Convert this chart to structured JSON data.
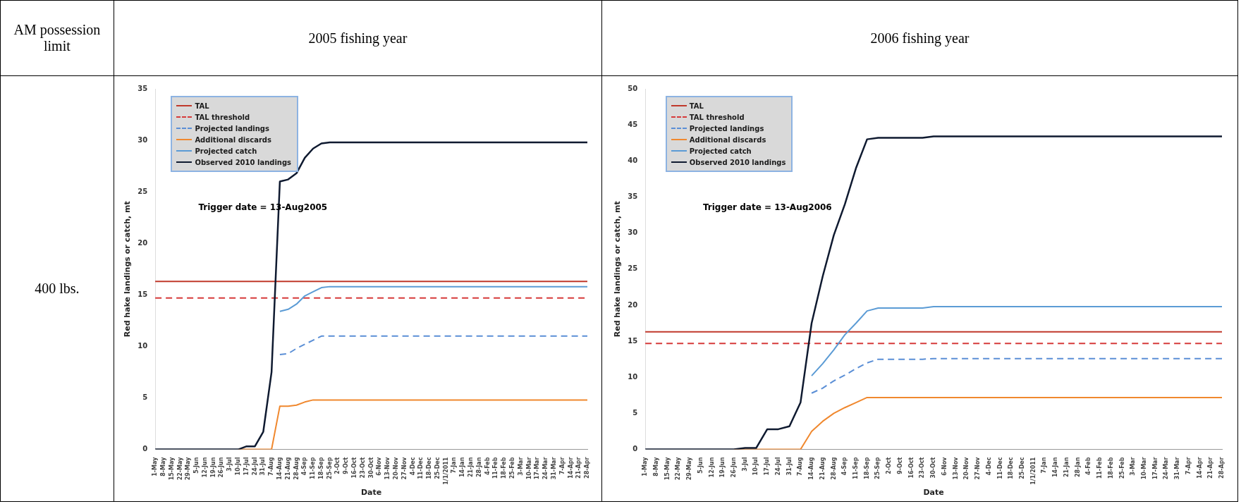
{
  "chart_data": [
    {
      "type": "other",
      "title": "AM possession limit",
      "annotations": [
        "400 lbs."
      ]
    },
    {
      "type": "line",
      "title": "2005 fishing year",
      "xlabel": "Date",
      "ylabel": "Red hake landings or catch, mt",
      "legend": "top left",
      "marker": "none",
      "grid": false,
      "categories": [
        "1-May",
        "8-May",
        "15-May",
        "22-May",
        "29-May",
        "5-Jun",
        "12-Jun",
        "19-Jun",
        "26-Jun",
        "3-Jul",
        "10-Jul",
        "17-Jul",
        "24-Jul",
        "31-Jul",
        "7-Aug",
        "14-Aug",
        "21-Aug",
        "28-Aug",
        "4-Sep",
        "11-Sep",
        "18-Sep",
        "25-Sep",
        "2-Oct",
        "9-Oct",
        "16-Oct",
        "23-Oct",
        "30-Oct",
        "6-Nov",
        "13-Nov",
        "20-Nov",
        "27-Nov",
        "4-Dec",
        "11-Dec",
        "18-Dec",
        "25-Dec",
        "1/1/2011",
        "7-Jan",
        "14-Jan",
        "21-Jan",
        "28-Jan",
        "4-Feb",
        "11-Feb",
        "18-Feb",
        "25-Feb",
        "3-Mar",
        "10-Mar",
        "17-Mar",
        "24-Mar",
        "31-Mar",
        "7-Apr",
        "14-Apr",
        "21-Apr",
        "28-Apr"
      ],
      "ylim": [
        0,
        35
      ],
      "yticks": [
        0,
        5,
        10,
        15,
        20,
        25,
        30,
        35
      ],
      "ref_lines": [
        {
          "axis": "y",
          "value": 16.3,
          "label": "TAL",
          "color": "#c0392b",
          "line_style": "solid"
        },
        {
          "axis": "y",
          "value": 14.7,
          "label": "TAL threshold",
          "color": "#d63a3a",
          "line_style": "dashed"
        }
      ],
      "series": [
        {
          "name": "Projected landings",
          "color": "#5b8fd6",
          "line_style": "dashed",
          "values": [
            null,
            null,
            null,
            null,
            null,
            null,
            null,
            null,
            null,
            null,
            null,
            null,
            null,
            null,
            null,
            9.2,
            9.3,
            9.8,
            10.2,
            10.6,
            11.0,
            11.0,
            11.0,
            11.0,
            11.0,
            11.0,
            11.0,
            11.0,
            11.0,
            11.0,
            11.0,
            11.0,
            11.0,
            11.0,
            11.0,
            11.0,
            11.0,
            11.0,
            11.0,
            11.0,
            11.0,
            11.0,
            11.0,
            11.0,
            11.0,
            11.0,
            11.0,
            11.0,
            11.0,
            11.0,
            11.0,
            11.0,
            11.0
          ]
        },
        {
          "name": "Additional discards",
          "color": "#f0882e",
          "line_style": "solid",
          "values": [
            null,
            null,
            null,
            null,
            null,
            null,
            null,
            null,
            null,
            null,
            0,
            0,
            0,
            0,
            0,
            4.2,
            4.2,
            4.3,
            4.6,
            4.8,
            4.8,
            4.8,
            4.8,
            4.8,
            4.8,
            4.8,
            4.8,
            4.8,
            4.8,
            4.8,
            4.8,
            4.8,
            4.8,
            4.8,
            4.8,
            4.8,
            4.8,
            4.8,
            4.8,
            4.8,
            4.8,
            4.8,
            4.8,
            4.8,
            4.8,
            4.8,
            4.8,
            4.8,
            4.8,
            4.8,
            4.8,
            4.8,
            4.8
          ]
        },
        {
          "name": "Projected catch",
          "color": "#5b9bd5",
          "line_style": "solid",
          "values": [
            null,
            null,
            null,
            null,
            null,
            null,
            null,
            null,
            null,
            null,
            null,
            null,
            null,
            null,
            null,
            13.4,
            13.6,
            14.1,
            14.9,
            15.3,
            15.7,
            15.8,
            15.8,
            15.8,
            15.8,
            15.8,
            15.8,
            15.8,
            15.8,
            15.8,
            15.8,
            15.8,
            15.8,
            15.8,
            15.8,
            15.8,
            15.8,
            15.8,
            15.8,
            15.8,
            15.8,
            15.8,
            15.8,
            15.8,
            15.8,
            15.8,
            15.8,
            15.8,
            15.8,
            15.8,
            15.8,
            15.8,
            15.8
          ]
        },
        {
          "name": "Observed 2010 landings",
          "color": "#0f1a30",
          "line_style": "solid",
          "values": [
            0,
            0,
            0,
            0,
            0,
            0,
            0,
            0,
            0,
            0,
            0,
            0.3,
            0.3,
            1.7,
            7.5,
            26,
            26.2,
            26.8,
            28.3,
            29.2,
            29.7,
            29.8,
            29.8,
            29.8,
            29.8,
            29.8,
            29.8,
            29.8,
            29.8,
            29.8,
            29.8,
            29.8,
            29.8,
            29.8,
            29.8,
            29.8,
            29.8,
            29.8,
            29.8,
            29.8,
            29.8,
            29.8,
            29.8,
            29.8,
            29.8,
            29.8,
            29.8,
            29.8,
            29.8,
            29.8,
            29.8,
            29.8,
            29.8
          ]
        }
      ],
      "annotations": [
        "Trigger date = 13-Aug2005"
      ]
    },
    {
      "type": "line",
      "title": "2006 fishing year",
      "xlabel": "Date",
      "ylabel": "Red hake landings or catch, mt",
      "legend": "top left",
      "marker": "none",
      "grid": false,
      "categories": [
        "1-May",
        "8-May",
        "15-May",
        "22-May",
        "29-May",
        "5-Jun",
        "12-Jun",
        "19-Jun",
        "26-Jun",
        "3-Jul",
        "10-Jul",
        "17-Jul",
        "24-Jul",
        "31-Jul",
        "7-Aug",
        "14-Aug",
        "21-Aug",
        "28-Aug",
        "4-Sep",
        "11-Sep",
        "18-Sep",
        "25-Sep",
        "2-Oct",
        "9-Oct",
        "16-Oct",
        "23-Oct",
        "30-Oct",
        "6-Nov",
        "13-Nov",
        "20-Nov",
        "27-Nov",
        "4-Dec",
        "11-Dec",
        "18-Dec",
        "25-Dec",
        "1/1/2011",
        "7-Jan",
        "14-Jan",
        "21-Jan",
        "28-Jan",
        "4-Feb",
        "11-Feb",
        "18-Feb",
        "25-Feb",
        "3-Mar",
        "10-Mar",
        "17-Mar",
        "24-Mar",
        "31-Mar",
        "7-Apr",
        "14-Apr",
        "21-Apr",
        "28-Apr"
      ],
      "ylim": [
        0,
        50
      ],
      "yticks": [
        0,
        5,
        10,
        15,
        20,
        25,
        30,
        35,
        40,
        45,
        50
      ],
      "ref_lines": [
        {
          "axis": "y",
          "value": 16.3,
          "label": "TAL",
          "color": "#c0392b",
          "line_style": "solid"
        },
        {
          "axis": "y",
          "value": 14.7,
          "label": "TAL threshold",
          "color": "#d63a3a",
          "line_style": "dashed"
        }
      ],
      "series": [
        {
          "name": "Projected landings",
          "color": "#5b8fd6",
          "line_style": "dashed",
          "values": [
            null,
            null,
            null,
            null,
            null,
            null,
            null,
            null,
            null,
            null,
            null,
            null,
            null,
            null,
            null,
            7.8,
            8.5,
            9.5,
            10.3,
            11.2,
            12.0,
            12.5,
            12.5,
            12.5,
            12.5,
            12.5,
            12.6,
            12.6,
            12.6,
            12.6,
            12.6,
            12.6,
            12.6,
            12.6,
            12.6,
            12.6,
            12.6,
            12.6,
            12.6,
            12.6,
            12.6,
            12.6,
            12.6,
            12.6,
            12.6,
            12.6,
            12.6,
            12.6,
            12.6,
            12.6,
            12.6,
            12.6,
            12.6
          ]
        },
        {
          "name": "Additional discards",
          "color": "#f0882e",
          "line_style": "solid",
          "values": [
            null,
            null,
            null,
            null,
            null,
            null,
            null,
            null,
            0,
            0,
            0,
            0,
            0,
            0,
            0,
            2.5,
            3.9,
            5.0,
            5.8,
            6.5,
            7.2,
            7.2,
            7.2,
            7.2,
            7.2,
            7.2,
            7.2,
            7.2,
            7.2,
            7.2,
            7.2,
            7.2,
            7.2,
            7.2,
            7.2,
            7.2,
            7.2,
            7.2,
            7.2,
            7.2,
            7.2,
            7.2,
            7.2,
            7.2,
            7.2,
            7.2,
            7.2,
            7.2,
            7.2,
            7.2,
            7.2,
            7.2,
            7.2
          ]
        },
        {
          "name": "Projected catch",
          "color": "#5b9bd5",
          "line_style": "solid",
          "values": [
            null,
            null,
            null,
            null,
            null,
            null,
            null,
            null,
            null,
            null,
            null,
            null,
            null,
            null,
            null,
            10.2,
            11.9,
            13.8,
            15.9,
            17.5,
            19.2,
            19.6,
            19.6,
            19.6,
            19.6,
            19.6,
            19.8,
            19.8,
            19.8,
            19.8,
            19.8,
            19.8,
            19.8,
            19.8,
            19.8,
            19.8,
            19.8,
            19.8,
            19.8,
            19.8,
            19.8,
            19.8,
            19.8,
            19.8,
            19.8,
            19.8,
            19.8,
            19.8,
            19.8,
            19.8,
            19.8,
            19.8,
            19.8
          ]
        },
        {
          "name": "Observed 2010 landings",
          "color": "#0f1a30",
          "line_style": "solid",
          "values": [
            0,
            0,
            0,
            0,
            0,
            0,
            0,
            0,
            0,
            0.2,
            0.2,
            2.8,
            2.8,
            3.2,
            6.5,
            17.5,
            24,
            29.7,
            34,
            39,
            43,
            43.2,
            43.2,
            43.2,
            43.2,
            43.2,
            43.4,
            43.4,
            43.4,
            43.4,
            43.4,
            43.4,
            43.4,
            43.4,
            43.4,
            43.4,
            43.4,
            43.4,
            43.4,
            43.4,
            43.4,
            43.4,
            43.4,
            43.4,
            43.4,
            43.4,
            43.4,
            43.4,
            43.4,
            43.4,
            43.4,
            43.4,
            43.4
          ]
        }
      ],
      "annotations": [
        "Trigger date = 13-Aug2006"
      ]
    }
  ]
}
